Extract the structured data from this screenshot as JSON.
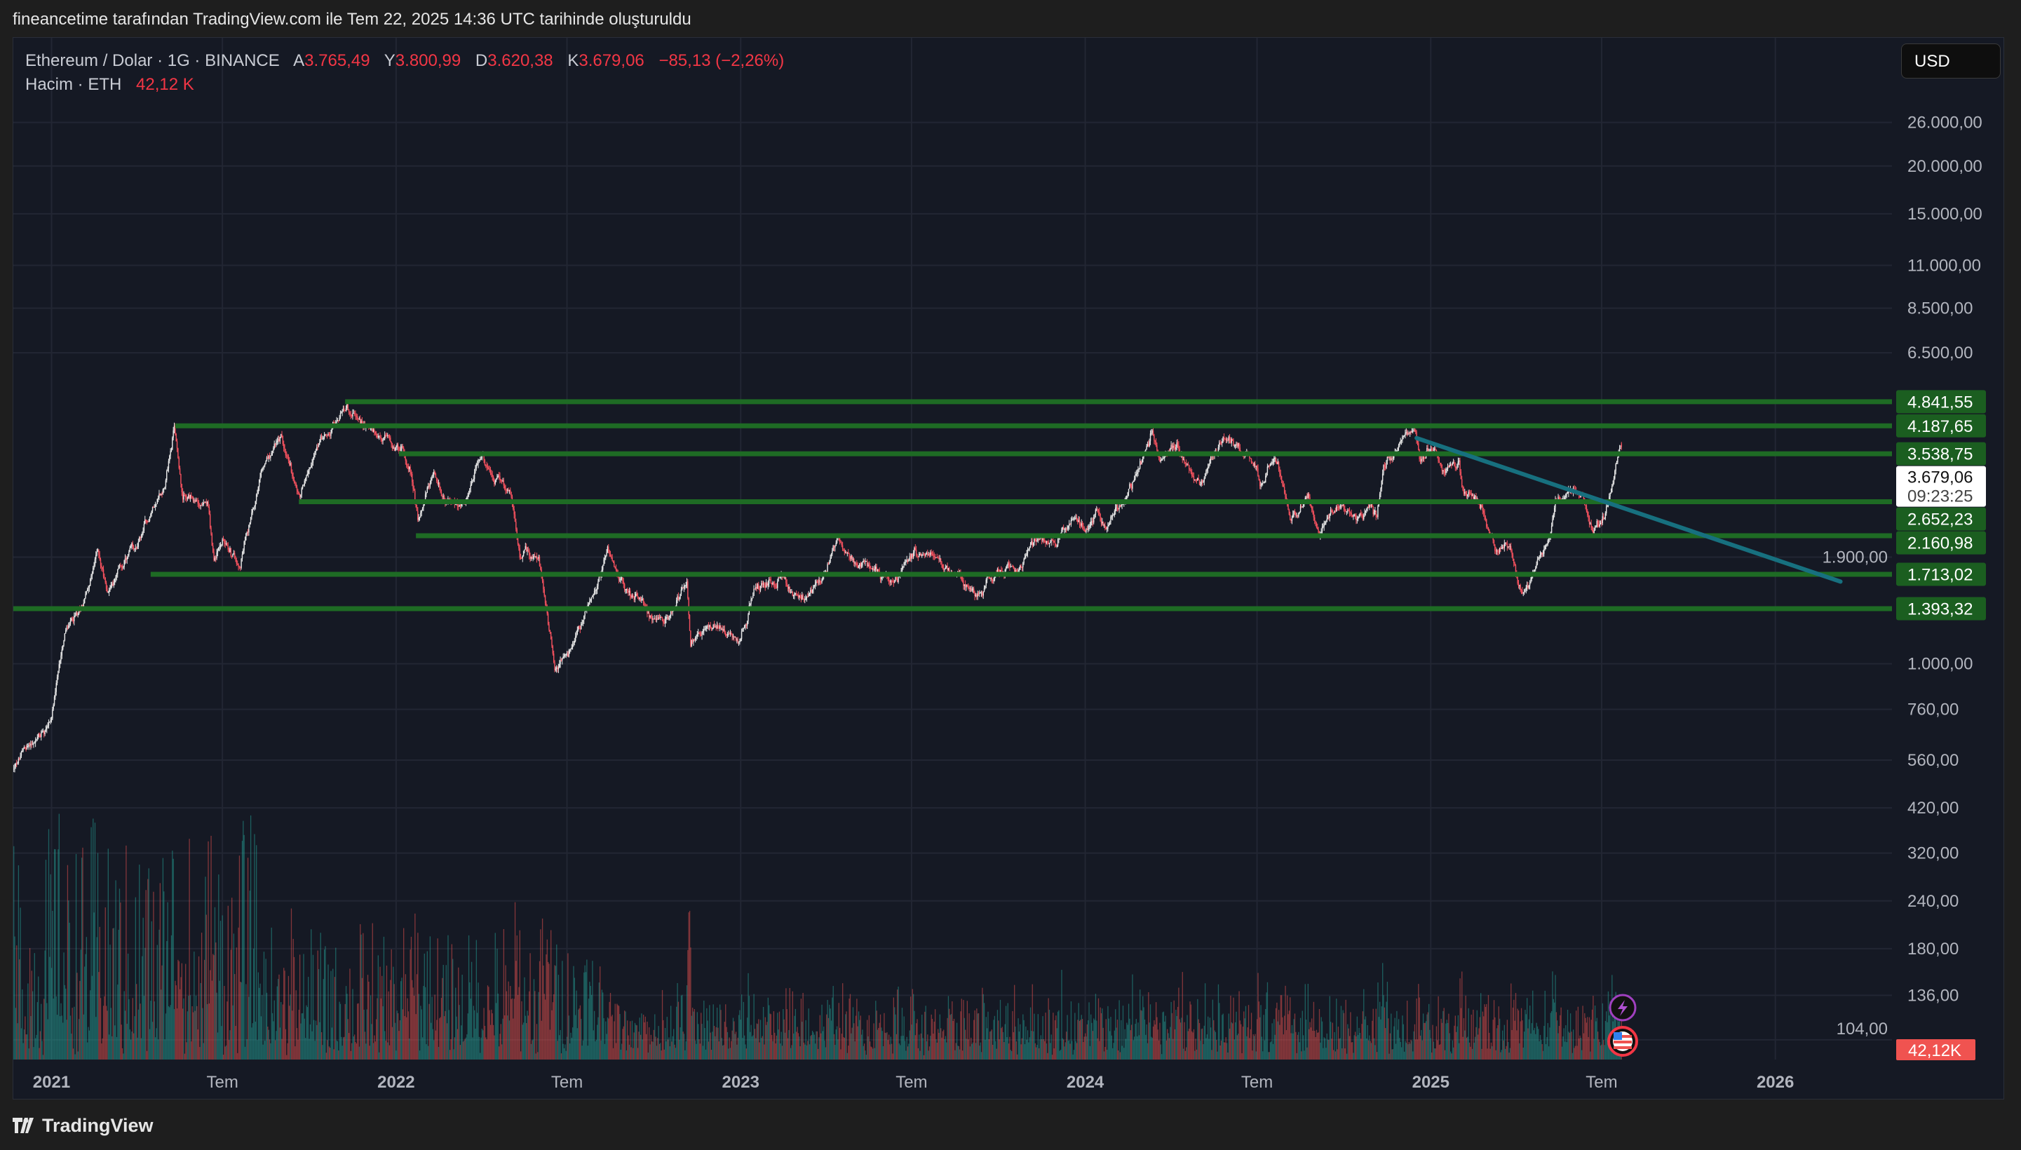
{
  "header": {
    "attribution": "fineancetime tarafından TradingView.com ile Tem 22, 2025 14:36 UTC tarihinde oluşturuldu"
  },
  "legend": {
    "symbol": "Ethereum / Dolar · 1G · BINANCE",
    "o_label": "A",
    "o": "3.765,49",
    "h_label": "Y",
    "h": "3.800,99",
    "l_label": "D",
    "l": "3.620,38",
    "c_label": "K",
    "c": "3.679,06",
    "change": "−85,13 (−2,26%)",
    "volume_label": "Hacim · ETH",
    "volume": "42,12 K"
  },
  "currency_button": "USD",
  "footer": {
    "brand": "TradingView"
  },
  "colors": {
    "up": "#eaeaea",
    "down": "#f7525f",
    "level": "#1e6b24",
    "level_label": "#1b5e20",
    "trendline": "#17707f",
    "volume_up": "#26a69a",
    "volume_down": "#ef5350",
    "volume_label": "#f05350"
  },
  "icons": {
    "event_1": "lightning-icon",
    "event_2": "us-flag-icon"
  },
  "chart_data": {
    "type": "candlestick",
    "scale": "log",
    "series": "Ethereum / Dolar · 1G · BINANCE",
    "last_candle": {
      "date": "2025-07-22",
      "open": 3765.49,
      "high": 3800.99,
      "low": 3620.38,
      "close": 3679.06
    },
    "close_path": [
      [
        "2020-11-22",
        530
      ],
      [
        "2020-12-05",
        600
      ],
      [
        "2020-12-20",
        640
      ],
      [
        "2021-01-01",
        730
      ],
      [
        "2021-01-15",
        1200
      ],
      [
        "2021-02-01",
        1370
      ],
      [
        "2021-02-19",
        1960
      ],
      [
        "2021-03-01",
        1570
      ],
      [
        "2021-03-15",
        1790
      ],
      [
        "2021-04-01",
        1970
      ],
      [
        "2021-04-15",
        2430
      ],
      [
        "2021-05-01",
        2950
      ],
      [
        "2021-05-11",
        4170
      ],
      [
        "2021-05-20",
        2770
      ],
      [
        "2021-06-01",
        2630
      ],
      [
        "2021-06-15",
        2590
      ],
      [
        "2021-06-22",
        1880
      ],
      [
        "2021-07-01",
        2110
      ],
      [
        "2021-07-20",
        1790
      ],
      [
        "2021-08-01",
        2560
      ],
      [
        "2021-08-15",
        3300
      ],
      [
        "2021-09-01",
        3830
      ],
      [
        "2021-09-21",
        2760
      ],
      [
        "2021-10-01",
        3310
      ],
      [
        "2021-10-15",
        3860
      ],
      [
        "2021-11-01",
        4320
      ],
      [
        "2021-11-10",
        4730
      ],
      [
        "2021-11-25",
        4270
      ],
      [
        "2021-12-04",
        4100
      ],
      [
        "2021-12-15",
        3950
      ],
      [
        "2022-01-01",
        3770
      ],
      [
        "2022-01-15",
        3330
      ],
      [
        "2022-01-24",
        2400
      ],
      [
        "2022-02-10",
        3080
      ],
      [
        "2022-02-24",
        2600
      ],
      [
        "2022-03-15",
        2590
      ],
      [
        "2022-04-02",
        3450
      ],
      [
        "2022-04-15",
        3030
      ],
      [
        "2022-05-01",
        2820
      ],
      [
        "2022-05-12",
        1950
      ],
      [
        "2022-06-01",
        1820
      ],
      [
        "2022-06-13",
        1210
      ],
      [
        "2022-06-18",
        995
      ],
      [
        "2022-07-01",
        1060
      ],
      [
        "2022-07-15",
        1230
      ],
      [
        "2022-08-13",
        1990
      ],
      [
        "2022-09-01",
        1580
      ],
      [
        "2022-09-15",
        1470
      ],
      [
        "2022-10-01",
        1310
      ],
      [
        "2022-10-15",
        1290
      ],
      [
        "2022-11-05",
        1630
      ],
      [
        "2022-11-09",
        1100
      ],
      [
        "2022-12-01",
        1280
      ],
      [
        "2022-12-20",
        1210
      ],
      [
        "2023-01-01",
        1200
      ],
      [
        "2023-01-15",
        1550
      ],
      [
        "2023-02-15",
        1690
      ],
      [
        "2023-03-10",
        1430
      ],
      [
        "2023-04-01",
        1820
      ],
      [
        "2023-04-15",
        2100
      ],
      [
        "2023-05-01",
        1830
      ],
      [
        "2023-06-15",
        1650
      ],
      [
        "2023-07-01",
        1930
      ],
      [
        "2023-07-15",
        1930
      ],
      [
        "2023-08-17",
        1690
      ],
      [
        "2023-09-11",
        1550
      ],
      [
        "2023-10-01",
        1730
      ],
      [
        "2023-10-24",
        1780
      ],
      [
        "2023-11-10",
        2120
      ],
      [
        "2023-12-01",
        2090
      ],
      [
        "2023-12-10",
        2350
      ],
      [
        "2024-01-01",
        2350
      ],
      [
        "2024-01-12",
        2520
      ],
      [
        "2024-01-23",
        2220
      ],
      [
        "2024-02-15",
        2780
      ],
      [
        "2024-03-01",
        3430
      ],
      [
        "2024-03-12",
        4050
      ],
      [
        "2024-03-20",
        3500
      ],
      [
        "2024-04-08",
        3700
      ],
      [
        "2024-04-20",
        3150
      ],
      [
        "2024-05-01",
        2990
      ],
      [
        "2024-05-20",
        3660
      ],
      [
        "2024-05-27",
        3880
      ],
      [
        "2024-06-15",
        3560
      ],
      [
        "2024-06-30",
        3430
      ],
      [
        "2024-07-05",
        2980
      ],
      [
        "2024-07-20",
        3500
      ],
      [
        "2024-08-05",
        2420
      ],
      [
        "2024-08-25",
        2760
      ],
      [
        "2024-09-06",
        2230
      ],
      [
        "2024-09-27",
        2660
      ],
      [
        "2024-10-10",
        2370
      ],
      [
        "2024-10-30",
        2660
      ],
      [
        "2024-11-05",
        2420
      ],
      [
        "2024-11-12",
        3250
      ],
      [
        "2024-12-06",
        3990
      ],
      [
        "2024-12-16",
        3990
      ],
      [
        "2024-12-20",
        3300
      ],
      [
        "2025-01-06",
        3680
      ],
      [
        "2025-01-13",
        3130
      ],
      [
        "2025-01-31",
        3300
      ],
      [
        "2025-02-03",
        2870
      ],
      [
        "2025-02-25",
        2500
      ],
      [
        "2025-03-10",
        2020
      ],
      [
        "2025-03-25",
        2070
      ],
      [
        "2025-04-09",
        1470
      ],
      [
        "2025-04-22",
        1760
      ],
      [
        "2025-05-08",
        2200
      ],
      [
        "2025-05-13",
        2680
      ],
      [
        "2025-06-10",
        2810
      ],
      [
        "2025-06-22",
        2230
      ],
      [
        "2025-07-01",
        2410
      ],
      [
        "2025-07-10",
        2770
      ],
      [
        "2025-07-21",
        3765.49
      ],
      [
        "2025-07-22",
        3679.06
      ]
    ],
    "horizontal_levels": [
      {
        "price": 4841.55,
        "label": "4.841,55",
        "start": "2021-11-08"
      },
      {
        "price": 4187.65,
        "label": "4.187,65",
        "start": "2021-05-12"
      },
      {
        "price": 3538.75,
        "label": "3.538,75",
        "start": "2022-01-04"
      },
      {
        "price": 2652.23,
        "label": "2.652,23",
        "start": "2021-09-20"
      },
      {
        "price": 2160.98,
        "label": "2.160,98",
        "start": "2022-01-22"
      },
      {
        "price": 1713.02,
        "label": "1.713,02",
        "start": "2021-04-16"
      },
      {
        "price": 1393.32,
        "label": "1.393,32",
        "start": "2020-11-20"
      }
    ],
    "trendline": {
      "start": [
        "2024-12-17",
        3890
      ],
      "end": [
        "2026-03-11",
        1640
      ]
    },
    "current_price": {
      "value": 3679.06,
      "label": "3.679,06",
      "countdown": "09:23:25"
    },
    "volume_last_label": "42,12K",
    "y_ticks": [
      {
        "value": 26000,
        "label": "26.000,00"
      },
      {
        "value": 20000,
        "label": "20.000,00"
      },
      {
        "value": 15000,
        "label": "15.000,00"
      },
      {
        "value": 11000,
        "label": "11.000,00"
      },
      {
        "value": 8500,
        "label": "8.500,00"
      },
      {
        "value": 6500,
        "label": "6.500,00"
      },
      {
        "value": 1900,
        "label": "1.900,00"
      },
      {
        "value": 1000,
        "label": "1.000,00"
      },
      {
        "value": 760,
        "label": "760,00"
      },
      {
        "value": 560,
        "label": "560,00"
      },
      {
        "value": 420,
        "label": "420,00"
      },
      {
        "value": 320,
        "label": "320,00"
      },
      {
        "value": 240,
        "label": "240,00"
      },
      {
        "value": 180,
        "label": "180,00"
      },
      {
        "value": 136,
        "label": "136,00"
      },
      {
        "value": 104,
        "label": "104,00"
      }
    ],
    "x_ticks": [
      {
        "date": "2021-01-01",
        "label": "2021",
        "bold": true
      },
      {
        "date": "2021-07-01",
        "label": "Tem",
        "bold": false
      },
      {
        "date": "2022-01-01",
        "label": "2022",
        "bold": true
      },
      {
        "date": "2022-07-01",
        "label": "Tem",
        "bold": false
      },
      {
        "date": "2023-01-01",
        "label": "2023",
        "bold": true
      },
      {
        "date": "2023-07-01",
        "label": "Tem",
        "bold": false
      },
      {
        "date": "2024-01-01",
        "label": "2024",
        "bold": true
      },
      {
        "date": "2024-07-01",
        "label": "Tem",
        "bold": false
      },
      {
        "date": "2025-01-01",
        "label": "2025",
        "bold": true
      },
      {
        "date": "2025-07-01",
        "label": "Tem",
        "bold": false
      },
      {
        "date": "2026-01-01",
        "label": "2026",
        "bold": true
      }
    ]
  }
}
